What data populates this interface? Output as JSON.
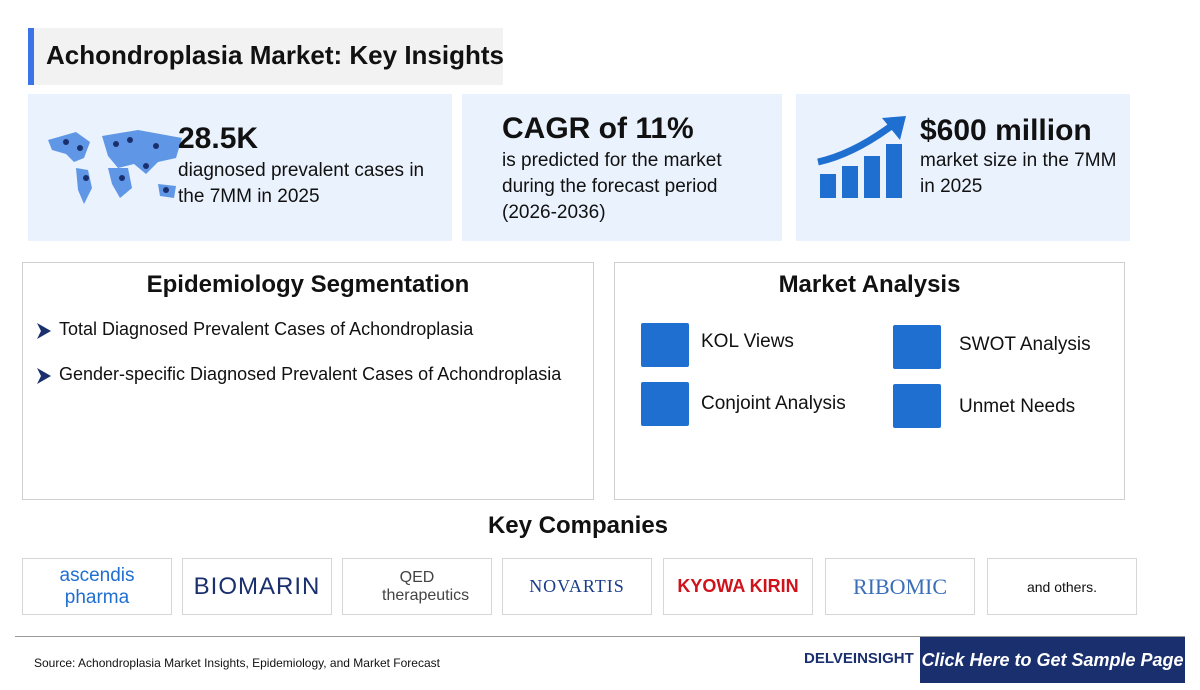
{
  "title": "Achondroplasia Market: Key Insights",
  "stats": [
    {
      "value": "28.5K",
      "text": "diagnosed prevalent cases in the 7MM in 2025"
    },
    {
      "value": "CAGR of 11%",
      "text": "is predicted for the market during the forecast period (2026-2036)"
    },
    {
      "value": "$600 million",
      "text": "market size in the 7MM in 2025"
    }
  ],
  "epidemiology": {
    "title": "Epidemiology Segmentation",
    "items": [
      "Total Diagnosed Prevalent Cases of Achondroplasia",
      "Gender-specific Diagnosed Prevalent Cases of Achondroplasia"
    ]
  },
  "market_analysis": {
    "title": "Market Analysis",
    "items": [
      "KOL Views",
      "SWOT Analysis",
      "Conjoint Analysis",
      "Unmet Needs"
    ]
  },
  "companies": {
    "title": "Key Companies",
    "items": [
      "ascendis pharma",
      "BIOMARIN",
      "QED therapeutics",
      "NOVARTIS",
      "KYOWA KIRIN",
      "RIBOMIC",
      "and others."
    ]
  },
  "footer": {
    "source": "Source: Achondroplasia Market Insights, Epidemiology, and Market Forecast",
    "brand": "DELVEINSIGHT",
    "button": "Click Here to Get Sample Page"
  }
}
